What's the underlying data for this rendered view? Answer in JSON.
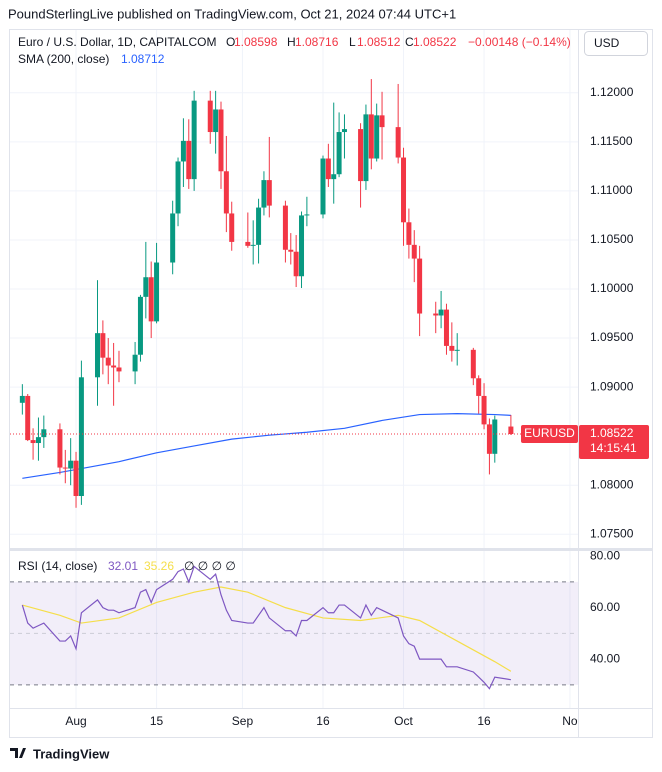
{
  "header": "PoundSterlingLive published on TradingView.com, Oct 21, 2024 07:44 UTC+1",
  "footer": "TradingView",
  "chart_data": [
    {
      "type": "candlestick",
      "title": "Euro / U.S. Dollar, 1D, CAPITALCOM",
      "legend": {
        "open": "O",
        "high": "H",
        "low": "L",
        "close": "C"
      },
      "change": "−0.00148 (−0.14%)",
      "currency": "USD",
      "symbol": "EURUSD",
      "countdown": "14:15:41",
      "up_color": "#089981",
      "down_color": "#f23645",
      "x": [
        -10,
        -9,
        -8,
        -7,
        -6,
        -3,
        -2,
        -1,
        0,
        1,
        4,
        5,
        6,
        7,
        8,
        11,
        12,
        13,
        14,
        15,
        18,
        19,
        20,
        21,
        22,
        25,
        26,
        27,
        28,
        29,
        32,
        33,
        34,
        35,
        36,
        39,
        40,
        41,
        42,
        43,
        46,
        47,
        48,
        49,
        50,
        53,
        54,
        55,
        56,
        57,
        60,
        61,
        62,
        63,
        64,
        67,
        68,
        69,
        70,
        71,
        74,
        75,
        76,
        77,
        78,
        81
      ],
      "open": [
        1.0884,
        1.0891,
        1.0846,
        1.0843,
        1.0849,
        1.0857,
        1.0818,
        1.0817,
        1.0825,
        1.0789,
        1.091,
        1.0955,
        1.093,
        1.0922,
        1.092,
        1.0916,
        1.0933,
        1.0992,
        1.1012,
        1.0967,
        1.1027,
        1.1077,
        1.113,
        1.1151,
        1.1112,
        1.1192,
        1.116,
        1.1183,
        1.112,
        1.1077,
        1.1048,
        1.1044,
        1.1045,
        1.1083,
        1.1111,
        1.1085,
        1.104,
        1.1038,
        1.1013,
        1.1075,
        1.1076,
        1.1133,
        1.1112,
        1.1117,
        1.116,
        1.1163,
        1.111,
        1.1178,
        1.1133,
        1.1177,
        1.1165,
        1.1134,
        1.1068,
        1.1045,
        1.1031,
        1.0975,
        1.0973,
        1.0979,
        1.0942,
        1.0937,
        1.0938,
        1.0909,
        1.0891,
        1.0862,
        1.0832,
        1.08598
      ],
      "high": [
        1.0903,
        1.0893,
        1.0858,
        1.0869,
        1.0871,
        1.0863,
        1.0836,
        1.0848,
        1.0834,
        1.0927,
        1.1009,
        1.0968,
        1.095,
        1.0945,
        1.0937,
        1.0946,
        1.0994,
        1.1048,
        1.1028,
        1.1047,
        1.109,
        1.1134,
        1.1174,
        1.1173,
        1.1202,
        1.1202,
        1.1202,
        1.1191,
        1.1156,
        1.1089,
        1.1078,
        1.107,
        1.1092,
        1.112,
        1.1155,
        1.109,
        1.1057,
        1.1055,
        1.1079,
        1.1094,
        1.1136,
        1.1148,
        1.119,
        1.118,
        1.1178,
        1.1169,
        1.1188,
        1.1214,
        1.1189,
        1.1201,
        1.1209,
        1.1144,
        1.1082,
        1.106,
        1.1044,
        1.0987,
        1.0998,
        1.0985,
        1.0966,
        1.0955,
        1.094,
        1.0912,
        1.0904,
        1.0868,
        1.0871,
        1.08716
      ],
      "low": [
        1.0872,
        1.0845,
        1.0826,
        1.0825,
        1.0838,
        1.0811,
        1.0802,
        1.08,
        1.0777,
        1.078,
        1.0881,
        1.0913,
        1.0903,
        1.0881,
        1.0905,
        1.0903,
        1.0926,
        1.097,
        1.095,
        1.0965,
        1.1015,
        1.1064,
        1.1104,
        1.1102,
        1.11,
        1.1148,
        1.1138,
        1.1102,
        1.1058,
        1.1039,
        1.1042,
        1.1025,
        1.1026,
        1.1075,
        1.1073,
        1.1027,
        1.1025,
        1.1002,
        1.1001,
        1.1064,
        1.1072,
        1.1104,
        1.1087,
        1.1114,
        1.1133,
        1.1083,
        1.1101,
        1.1122,
        1.113,
        1.1132,
        1.1128,
        1.1044,
        1.1031,
        1.1007,
        1.0952,
        1.0955,
        1.096,
        1.0933,
        1.0926,
        1.0922,
        1.0902,
        1.0873,
        1.0857,
        1.0811,
        1.0823,
        1.08512
      ],
      "close": [
        1.0891,
        1.0846,
        1.0843,
        1.0849,
        1.0857,
        1.0818,
        1.0817,
        1.0825,
        1.0789,
        1.091,
        1.0955,
        1.093,
        1.0922,
        1.092,
        1.0916,
        1.0933,
        1.0992,
        1.1012,
        1.0967,
        1.1027,
        1.1077,
        1.113,
        1.1151,
        1.1112,
        1.1192,
        1.116,
        1.1183,
        1.112,
        1.1077,
        1.1048,
        1.1044,
        1.1045,
        1.1083,
        1.1111,
        1.1085,
        1.104,
        1.1038,
        1.1013,
        1.1075,
        1.1076,
        1.1133,
        1.1112,
        1.1117,
        1.116,
        1.1163,
        1.111,
        1.1178,
        1.1133,
        1.1177,
        1.1165,
        1.1134,
        1.1068,
        1.1045,
        1.1031,
        1.0975,
        1.0973,
        1.0979,
        1.0942,
        1.0937,
        1.0938,
        1.0909,
        1.0891,
        1.0862,
        1.0832,
        1.0867,
        1.08522
      ],
      "overlays": [
        {
          "name": "SMA (200, close)",
          "color": "#2962ff",
          "x": [
            -10,
            -3,
            1,
            8,
            15,
            22,
            29,
            36,
            43,
            50,
            57,
            64,
            71,
            78,
            81
          ],
          "values": [
            1.0807,
            1.0813,
            1.0817,
            1.0824,
            1.0833,
            1.084,
            1.0847,
            1.0851,
            1.0854,
            1.0858,
            1.0866,
            1.0872,
            1.0873,
            1.0872,
            1.08712
          ]
        }
      ],
      "xlim": [
        -12.3,
        93.5
      ],
      "ylim": [
        1.0736,
        1.1264
      ],
      "yticks": [
        {
          "value": 1.12,
          "label": "1.12000"
        },
        {
          "value": 1.115,
          "label": "1.11500"
        },
        {
          "value": 1.11,
          "label": "1.11000"
        },
        {
          "value": 1.105,
          "label": "1.10500"
        },
        {
          "value": 1.1,
          "label": "1.10000"
        },
        {
          "value": 1.095,
          "label": "1.09500"
        },
        {
          "value": 1.09,
          "label": "1.09000"
        },
        {
          "value": 1.08,
          "label": "1.08000"
        },
        {
          "value": 1.075,
          "label": "1.07500"
        }
      ],
      "grid": true
    },
    {
      "type": "line",
      "title": "RSI (14, close)",
      "legend_extra": "∅ ∅ ∅ ∅",
      "x": [
        -10,
        -9,
        -8,
        -7,
        -6,
        -3,
        -2,
        -1,
        0,
        1,
        4,
        5,
        6,
        7,
        8,
        11,
        12,
        13,
        14,
        15,
        18,
        19,
        20,
        21,
        22,
        25,
        26,
        27,
        28,
        29,
        32,
        33,
        34,
        35,
        36,
        39,
        40,
        41,
        42,
        43,
        46,
        47,
        48,
        49,
        50,
        53,
        54,
        55,
        56,
        57,
        60,
        61,
        62,
        63,
        64,
        67,
        68,
        69,
        70,
        71,
        74,
        75,
        76,
        77,
        78,
        81
      ],
      "series": [
        {
          "color": "#7e57c2",
          "values": [
            61,
            54,
            52,
            53,
            54,
            47,
            47,
            49,
            44,
            58,
            63,
            60,
            59,
            59,
            58,
            60,
            66,
            67,
            62,
            67,
            71,
            74,
            75,
            70,
            76,
            71,
            73,
            65,
            59,
            55,
            54,
            54,
            57,
            60,
            56,
            51,
            51,
            49,
            55,
            55,
            60,
            58,
            58,
            61,
            61,
            56,
            61,
            57,
            60,
            59,
            56,
            49,
            46,
            45,
            40,
            40,
            40,
            37,
            37,
            37,
            35,
            33,
            31,
            28.5,
            33,
            32.01
          ]
        },
        {
          "color": "#f5de4a",
          "x": [
            -10,
            -3,
            1,
            8,
            15,
            22,
            27,
            32,
            39,
            46,
            53,
            60,
            64,
            71,
            78,
            81
          ],
          "values": [
            61,
            57,
            54,
            56,
            62,
            66,
            68,
            66,
            60,
            56,
            55,
            57,
            55,
            47,
            39,
            35.26
          ]
        }
      ],
      "levels": [
        70,
        50,
        30
      ],
      "band_color": "#7e57c2",
      "xlim": [
        -12.3,
        93.5
      ],
      "ylim": [
        21,
        82
      ],
      "yticks": [
        {
          "value": 40,
          "label": "40.00"
        },
        {
          "value": 60,
          "label": "60.00"
        },
        {
          "value": 80,
          "label": "80.00"
        }
      ],
      "xticks": [
        {
          "value": 0,
          "label": "Aug"
        },
        15,
        {
          "value": 31,
          "label": "Sep"
        },
        {
          "value": 46,
          "label": "16"
        },
        {
          "value": 61,
          "label": "Oct"
        },
        {
          "value": 76,
          "label": "16"
        },
        {
          "value": 92,
          "label": "No"
        }
      ],
      "grid": true
    }
  ]
}
